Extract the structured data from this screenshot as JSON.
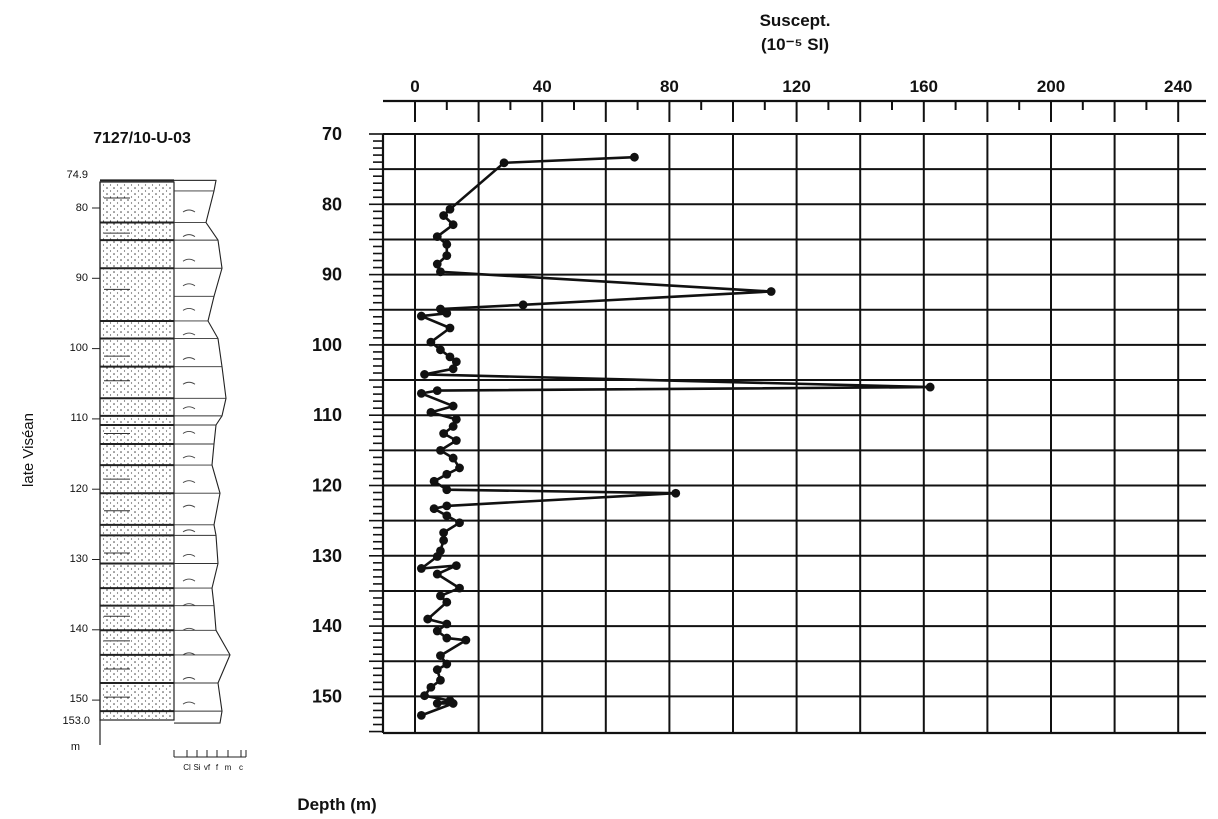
{
  "log": {
    "well_id": "7127/10-U-03",
    "stage": "late Viséan",
    "depth_ticks": [
      "74.9",
      "80",
      "90",
      "100",
      "110",
      "120",
      "130",
      "140",
      "150",
      "153.0"
    ],
    "unit": "m",
    "grain_scale": [
      "Cl",
      "Si",
      "vf",
      "f",
      "m",
      "c"
    ]
  },
  "chart_data": {
    "type": "line",
    "title": "Suscept.",
    "subtitle": "(10⁻⁵ SI)",
    "xlabel": "Suscept. (10⁻⁵ SI)",
    "ylabel": "Depth (m)",
    "xlim": [
      -10,
      245
    ],
    "ylim": [
      70,
      155
    ],
    "y_inverted": true,
    "x_axis_position": "top",
    "grid": true,
    "x_ticks": [
      0,
      40,
      80,
      120,
      160,
      200,
      240
    ],
    "y_ticks": [
      70,
      80,
      90,
      100,
      110,
      120,
      130,
      140,
      150
    ],
    "series": [
      {
        "x": [
          69,
          28,
          11,
          9,
          12,
          7,
          10,
          10,
          7,
          8,
          112,
          34,
          8,
          10,
          2,
          11,
          5,
          8,
          11,
          13,
          12,
          3,
          162,
          7,
          2,
          12,
          5,
          13,
          12,
          9,
          13,
          8,
          12,
          14,
          10,
          6,
          10,
          82,
          10,
          6,
          10,
          14,
          9,
          9,
          8,
          7,
          2,
          13,
          7,
          14,
          8,
          10,
          4,
          10,
          7,
          10,
          16,
          8,
          10,
          7,
          8,
          5,
          3,
          11,
          7,
          12,
          2
        ],
        "y": [
          73.3,
          74.1,
          80.7,
          81.6,
          82.9,
          84.6,
          85.7,
          87.3,
          88.5,
          89.6,
          92.4,
          94.3,
          94.9,
          95.5,
          95.9,
          97.6,
          99.6,
          100.7,
          101.7,
          102.4,
          103.4,
          104.2,
          106.0,
          106.5,
          106.9,
          108.7,
          109.6,
          110.6,
          111.6,
          112.6,
          113.6,
          115.0,
          116.1,
          117.5,
          118.4,
          119.4,
          120.6,
          121.1,
          122.9,
          123.3,
          124.3,
          125.3,
          126.7,
          127.8,
          129.3,
          130.1,
          131.8,
          131.4,
          132.6,
          134.6,
          135.7,
          136.6,
          139.0,
          139.7,
          140.7,
          141.7,
          142.0,
          144.2,
          145.4,
          146.2,
          147.7,
          148.7,
          149.9,
          150.6,
          151.0,
          151.0,
          152.7
        ]
      }
    ]
  }
}
